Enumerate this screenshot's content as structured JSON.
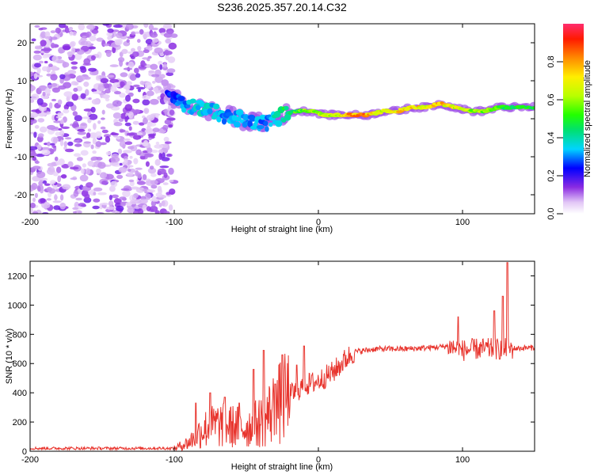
{
  "title": "S236.2025.357.20.14.C32",
  "chart_data": [
    {
      "type": "heatmap",
      "name": "spectrogram",
      "xlabel": "Height of straight line (km)",
      "ylabel": "Frequency (Hz)",
      "xlim": [
        -200,
        150
      ],
      "ylim": [
        -25,
        25
      ],
      "xticks": [
        -200,
        -100,
        0,
        100
      ],
      "xtick_labels": [
        "-200",
        "-100",
        "0",
        "100"
      ],
      "yticks": [
        -20,
        -10,
        0,
        10,
        20
      ],
      "ytick_labels": [
        "-20",
        "-10",
        "0",
        "10",
        "20"
      ],
      "noise_region_x": [
        -200,
        -100
      ],
      "ridge": {
        "x": [
          -105,
          -95,
          -85,
          -75,
          -65,
          -55,
          -45,
          -35,
          -25,
          -15,
          -5,
          5,
          15,
          25,
          35,
          45,
          55,
          65,
          75,
          85,
          95,
          105,
          115,
          125,
          135,
          145,
          150
        ],
        "freq": [
          7,
          4,
          3,
          2,
          1,
          0,
          -1,
          -1,
          1,
          2,
          2,
          1,
          1,
          1,
          1,
          2,
          2,
          3,
          3,
          4,
          3,
          2,
          2,
          3,
          3,
          3,
          3
        ],
        "amplitude": [
          0.25,
          0.35,
          0.4,
          0.4,
          0.35,
          0.35,
          0.35,
          0.35,
          0.5,
          0.6,
          0.7,
          0.75,
          0.8,
          0.9,
          0.9,
          0.75,
          0.8,
          0.85,
          0.8,
          0.85,
          0.75,
          0.7,
          0.65,
          0.6,
          0.55,
          0.6,
          0.6
        ]
      },
      "colorbar": {
        "label": "Normalized spectral amplitude",
        "range": [
          0,
          1
        ],
        "ticks": [
          0.0,
          0.2,
          0.4,
          0.6,
          0.8
        ],
        "tick_labels": [
          "0.0",
          "0.2",
          "0.4",
          "0.6",
          "0.8"
        ]
      }
    },
    {
      "type": "line",
      "name": "snr",
      "xlabel": "Height of straight line (km)",
      "ylabel": "SNR (10 * v/v)",
      "xlim": [
        -200,
        150
      ],
      "ylim": [
        0,
        1300
      ],
      "xticks": [
        -200,
        -100,
        0,
        100
      ],
      "xtick_labels": [
        "-200",
        "-100",
        "0",
        "100"
      ],
      "yticks": [
        0,
        200,
        400,
        600,
        800,
        1000,
        1200
      ],
      "ytick_labels": [
        "0",
        "200",
        "400",
        "600",
        "800",
        "1000",
        "1200"
      ],
      "color": "#e8352e",
      "trend": {
        "x": [
          -200,
          -100,
          -90,
          -80,
          -70,
          -60,
          -50,
          -40,
          -30,
          -20,
          -10,
          0,
          10,
          20,
          25,
          40,
          60,
          80,
          90,
          100,
          110,
          120,
          130,
          140,
          150
        ],
        "y": [
          20,
          20,
          60,
          150,
          180,
          170,
          160,
          200,
          300,
          380,
          450,
          480,
          540,
          640,
          680,
          700,
          700,
          710,
          720,
          690,
          700,
          700,
          700,
          705,
          710
        ]
      },
      "peaks": {
        "x": [
          -85,
          -75,
          -65,
          -55,
          -45,
          -38,
          -30,
          -25,
          -15,
          -10,
          97,
          122,
          128,
          131
        ],
        "y": [
          330,
          400,
          370,
          330,
          560,
          690,
          460,
          660,
          590,
          720,
          920,
          960,
          1060,
          1290
        ]
      }
    }
  ]
}
